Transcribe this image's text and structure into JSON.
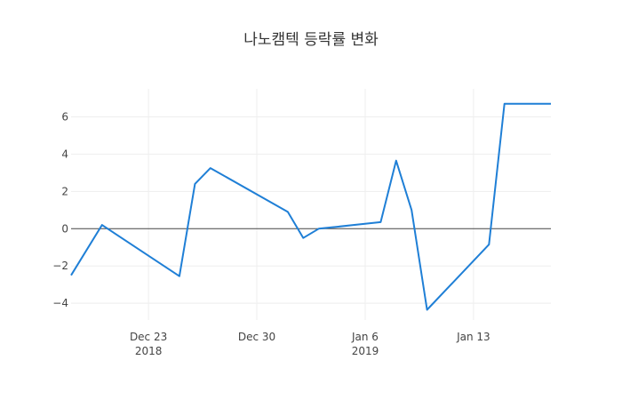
{
  "chart_data": {
    "type": "line",
    "title": "나노캠텍 등락률 변화",
    "xlabel": "",
    "ylabel": "",
    "x_range": [
      "2018-12-18",
      "2019-01-18"
    ],
    "ylim": [
      -4.9,
      7.5
    ],
    "grid": true,
    "legend": "none",
    "color": "#1f7fd6",
    "x_ticks": [
      {
        "date": "2018-12-23",
        "label": "Dec 23",
        "sub": "2018"
      },
      {
        "date": "2018-12-30",
        "label": "Dec 30",
        "sub": ""
      },
      {
        "date": "2019-01-06",
        "label": "Jan 6",
        "sub": "2019"
      },
      {
        "date": "2019-01-13",
        "label": "Jan 13",
        "sub": ""
      }
    ],
    "y_ticks": [
      {
        "value": 6,
        "label": "6"
      },
      {
        "value": 4,
        "label": "4"
      },
      {
        "value": 2,
        "label": "2"
      },
      {
        "value": 0,
        "label": "0"
      },
      {
        "value": -2,
        "label": "−2"
      },
      {
        "value": -4,
        "label": "−4"
      }
    ],
    "series": [
      {
        "x": [
          "2018-12-18",
          "2018-12-20",
          "2018-12-25",
          "2018-12-26",
          "2018-12-27",
          "2019-01-01",
          "2019-01-02",
          "2019-01-03",
          "2019-01-07",
          "2019-01-08",
          "2019-01-09",
          "2019-01-10",
          "2019-01-14",
          "2019-01-15",
          "2019-01-18"
        ],
        "values": [
          -2.5,
          0.2,
          -2.55,
          2.4,
          3.25,
          0.9,
          -0.5,
          0.0,
          0.35,
          3.65,
          1.0,
          -4.35,
          -0.85,
          6.7,
          6.7
        ]
      }
    ]
  }
}
